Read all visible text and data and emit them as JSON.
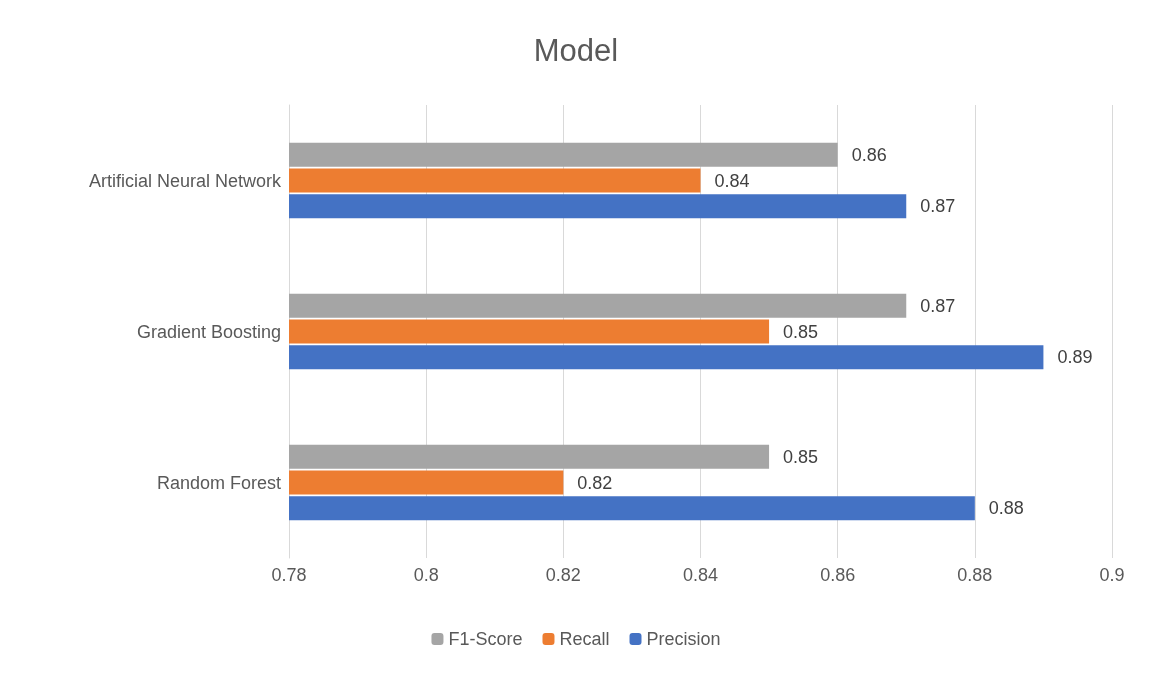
{
  "chart_data": {
    "type": "bar",
    "orientation": "horizontal",
    "title": "Model",
    "categories": [
      "Artificial Neural Network",
      "Gradient Boosting",
      "Random Forest"
    ],
    "series": [
      {
        "name": "F1-Score",
        "color": "#a5a5a5",
        "values": [
          0.86,
          0.87,
          0.85
        ]
      },
      {
        "name": "Recall",
        "color": "#ed7d31",
        "values": [
          0.84,
          0.85,
          0.82
        ]
      },
      {
        "name": "Precision",
        "color": "#4472c4",
        "values": [
          0.87,
          0.89,
          0.88
        ]
      }
    ],
    "xlim": [
      0.78,
      0.9
    ],
    "xticks": [
      0.78,
      0.8,
      0.82,
      0.84,
      0.86,
      0.88,
      0.9
    ],
    "data_labels": true,
    "grid": "x",
    "legend": "bottom"
  }
}
